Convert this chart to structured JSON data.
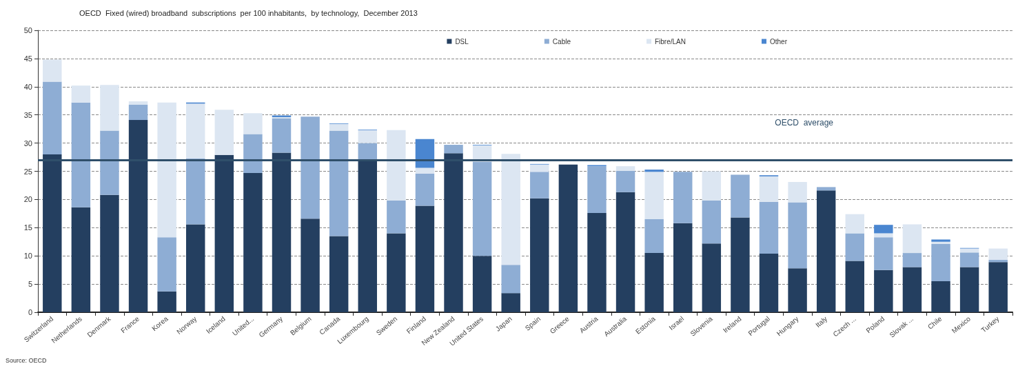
{
  "chart_data": {
    "type": "bar",
    "title": "OECD  Fixed (wired) broadband  subscriptions  per 100 inhabitants,  by technology,  December 2013",
    "stacked": true,
    "legend": "top right",
    "grid": "y",
    "ylim": [
      0,
      50
    ],
    "yticks": [
      0,
      5,
      10,
      15,
      20,
      25,
      30,
      35,
      40,
      45,
      50
    ],
    "categories": [
      "Switzerland",
      "Netherlands",
      "Denmark",
      "France",
      "Korea",
      "Norway",
      "Iceland",
      "United...",
      "Germany",
      "Belgium",
      "Canada",
      "Luxembourg",
      "Sweden",
      "Finland",
      "New Zealand",
      "United States",
      "Japan",
      "Spain",
      "Greece",
      "Austria",
      "Australia",
      "Estonia",
      "Israel",
      "Slovenia",
      "Ireland",
      "Portugal",
      "Hungary",
      "Italy",
      "Czech ...",
      "Poland",
      "Slovak ...",
      "Chile",
      "Mexico",
      "Turkey"
    ],
    "series": [
      {
        "name": "DSL",
        "color": "#243f60",
        "values": [
          28.0,
          18.6,
          20.8,
          34.1,
          3.7,
          15.6,
          27.9,
          24.7,
          28.3,
          16.6,
          13.5,
          26.9,
          14.0,
          18.9,
          28.2,
          10.0,
          3.4,
          20.2,
          26.2,
          17.6,
          21.3,
          10.5,
          15.8,
          12.2,
          16.8,
          10.4,
          7.8,
          21.6,
          9.1,
          7.5,
          8.0,
          5.5,
          8.0,
          8.9
        ]
      },
      {
        "name": "Cable",
        "color": "#8eadd4",
        "values": [
          12.9,
          18.6,
          11.4,
          2.7,
          9.6,
          11.7,
          0,
          6.9,
          6.1,
          18.1,
          18.7,
          3.1,
          5.8,
          5.7,
          1.5,
          16.7,
          5.0,
          4.7,
          0,
          8.3,
          3.8,
          6.0,
          9.1,
          7.6,
          7.6,
          9.2,
          11.7,
          0.6,
          4.9,
          5.8,
          2.5,
          6.6,
          2.6,
          0.4
        ]
      },
      {
        "name": "Fibre/LAN",
        "color": "#dce6f2",
        "values": [
          3.9,
          3.0,
          8.1,
          0.6,
          23.9,
          9.7,
          8.0,
          3.7,
          0.2,
          0,
          1.2,
          2.3,
          12.5,
          1.0,
          0,
          2.9,
          19.7,
          1.3,
          0,
          0,
          0.8,
          8.4,
          0,
          5.2,
          0,
          4.5,
          3.6,
          0,
          3.4,
          0.7,
          5.1,
          0.4,
          0.7,
          2.0
        ]
      },
      {
        "name": "Other",
        "color": "#4a86d0",
        "values": [
          0,
          0,
          0,
          0,
          0,
          0.2,
          0,
          0,
          0.3,
          0,
          0.1,
          0.1,
          0,
          5.1,
          0,
          0.1,
          0,
          0.1,
          0,
          0.2,
          0,
          0.4,
          0,
          0,
          0,
          0.2,
          0,
          0,
          0,
          1.5,
          0,
          0.4,
          0.1,
          0
        ]
      }
    ],
    "ref_lines": [
      {
        "axis": "y",
        "value": 27.0,
        "label": "OECD  average",
        "color": "#2f4f6a"
      }
    ],
    "annotations": [
      "Source: OECD"
    ]
  }
}
